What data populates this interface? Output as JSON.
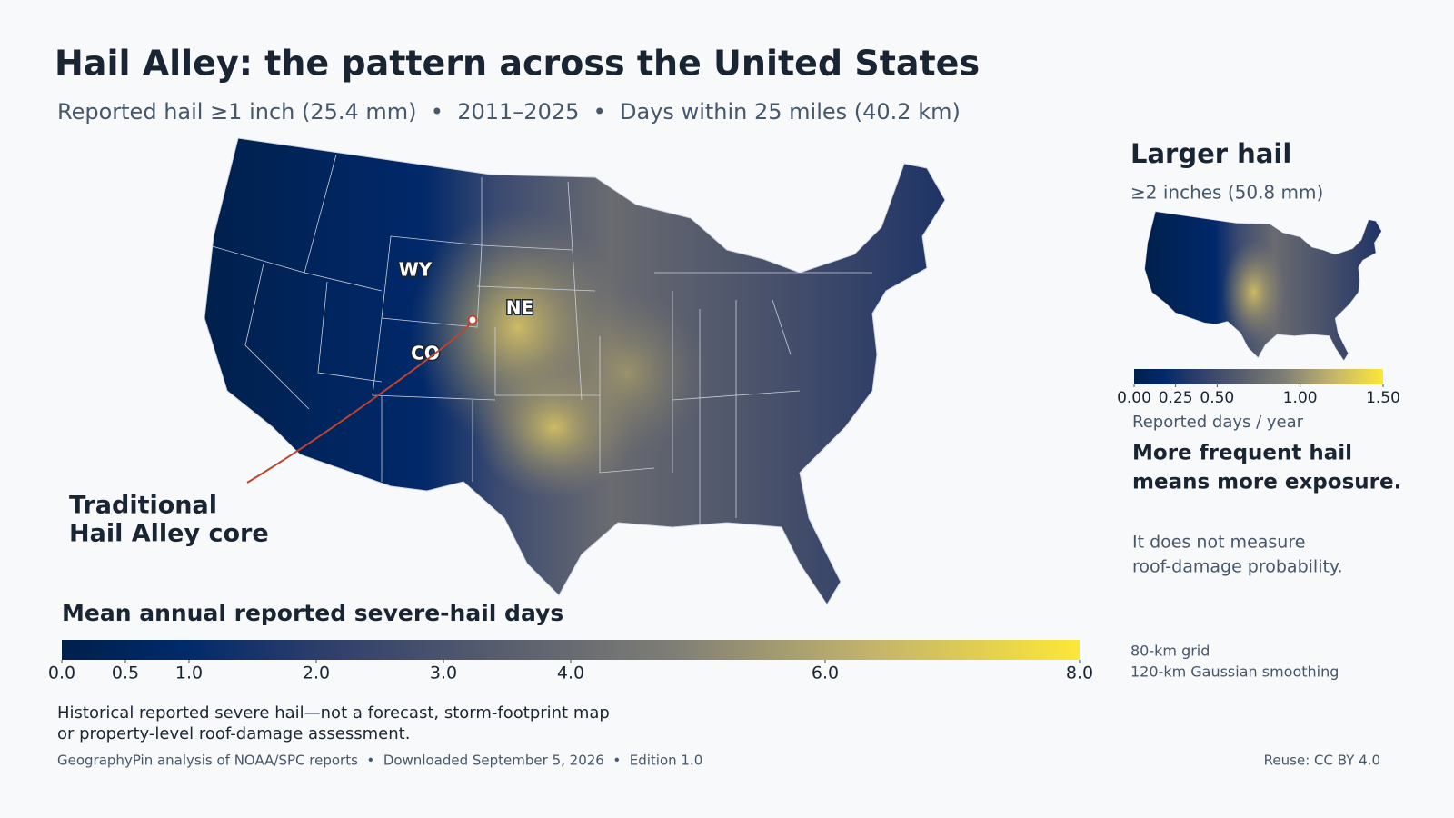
{
  "title": "Hail Alley: the pattern across the United States",
  "subtitle": "Reported hail ≥1 inch (25.4 mm)  •  2011–2025  •  Days within 25 miles (40.2 km)",
  "main_map": {
    "state_labels": [
      "WY",
      "NE",
      "CO"
    ],
    "annotation": [
      "Traditional",
      "Hail Alley core"
    ]
  },
  "colorbar": {
    "title": "Mean annual reported severe-hail days",
    "lim": [
      0,
      8
    ],
    "ticks": [
      {
        "value": 0,
        "label": "0.0"
      },
      {
        "value": 0.5,
        "label": "0.5"
      },
      {
        "value": 1,
        "label": "1.0"
      },
      {
        "value": 2,
        "label": "2.0"
      },
      {
        "value": 3,
        "label": "3.0"
      },
      {
        "value": 4,
        "label": "4.0"
      },
      {
        "value": 6,
        "label": "6.0"
      },
      {
        "value": 8,
        "label": "8.0"
      }
    ]
  },
  "inset": {
    "title": "Larger hail",
    "subtitle": "≥2 inches (50.8 mm)",
    "colorbar": {
      "lim": [
        0,
        1.5
      ],
      "ticks": [
        {
          "value": 0,
          "label": "0.00"
        },
        {
          "value": 0.25,
          "label": "0.25"
        },
        {
          "value": 0.5,
          "label": "0.50"
        },
        {
          "value": 1,
          "label": "1.00"
        },
        {
          "value": 1.5,
          "label": "1.50"
        }
      ],
      "label": "Reported days / year"
    }
  },
  "message": [
    "More frequent hail",
    "means more exposure."
  ],
  "caveat": [
    "It does not measure",
    "roof-damage probability."
  ],
  "method": [
    "80-km grid",
    "120-km Gaussian smoothing"
  ],
  "notes": [
    "Historical reported severe hail—not a forecast, storm-footprint map",
    "or property-level roof-damage assessment."
  ],
  "source": "GeographyPin analysis of NOAA/SPC reports  •  Downloaded September 5, 2026  •  Edition 1.0",
  "license": "Reuse: CC BY 4.0"
}
